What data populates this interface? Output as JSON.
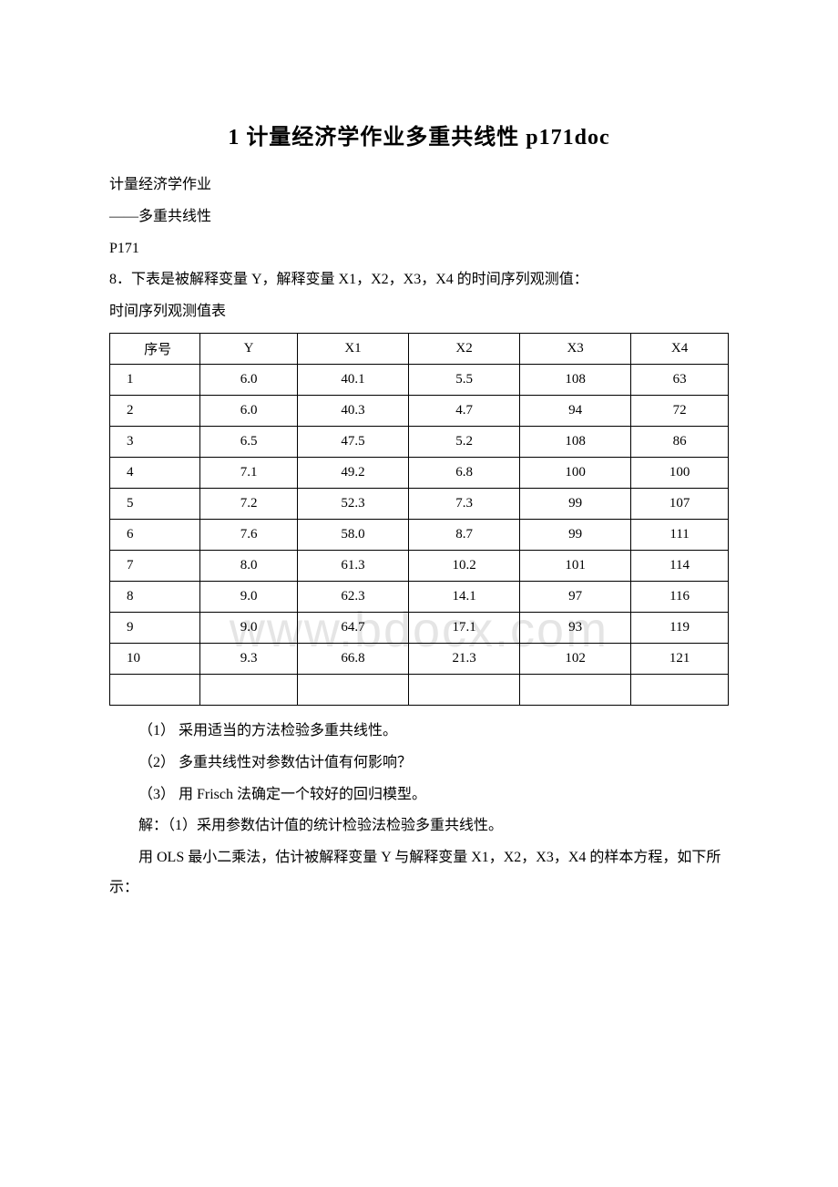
{
  "title": "1 计量经济学作业多重共线性 p171doc",
  "paragraphs": {
    "p1": "计量经济学作业",
    "p2": "——多重共线性",
    "p3": "P171",
    "p4": "8．下表是被解释变量 Y，解释变量 X1，X2，X3，X4 的时间序列观测值：",
    "p5": "时间序列观测值表"
  },
  "table": {
    "columns": [
      "序号",
      "Y",
      "X1",
      "X2",
      "X3",
      "X4"
    ],
    "rows": [
      [
        "1",
        "6.0",
        "40.1",
        "5.5",
        "108",
        "63"
      ],
      [
        "2",
        "6.0",
        "40.3",
        "4.7",
        "94",
        "72"
      ],
      [
        "3",
        "6.5",
        "47.5",
        "5.2",
        "108",
        "86"
      ],
      [
        "4",
        "7.1",
        "49.2",
        "6.8",
        "100",
        "100"
      ],
      [
        "5",
        "7.2",
        "52.3",
        "7.3",
        "99",
        "107"
      ],
      [
        "6",
        "7.6",
        "58.0",
        "8.7",
        "99",
        "111"
      ],
      [
        "7",
        "8.0",
        "61.3",
        "10.2",
        "101",
        "114"
      ],
      [
        "8",
        "9.0",
        "62.3",
        "14.1",
        "97",
        "116"
      ],
      [
        "9",
        "9.0",
        "64.7",
        "17.1",
        "93",
        "119"
      ],
      [
        "10",
        "9.3",
        "66.8",
        "21.3",
        "102",
        "121"
      ],
      [
        "",
        "",
        "",
        "",
        "",
        ""
      ]
    ]
  },
  "questions": {
    "q1": "（1） 采用适当的方法检验多重共线性。",
    "q2": "（2） 多重共线性对参数估计值有何影响？",
    "q3": "（3） 用 Frisch 法确定一个较好的回归模型。"
  },
  "solution": {
    "s1": "解：（1）采用参数估计值的统计检验法检验多重共线性。",
    "s2": "用 OLS 最小二乘法，估计被解释变量 Y 与解释变量 X1，X2，X3，X4 的样本方程，如下所示："
  },
  "watermark": "www.bdocx.com",
  "colors": {
    "text": "#000000",
    "background": "#ffffff",
    "border": "#000000",
    "watermark": "#e5e5e5"
  },
  "fonts": {
    "body_family": "SimSun",
    "title_size": 24,
    "body_size": 16,
    "table_size": 15,
    "watermark_size": 54
  }
}
